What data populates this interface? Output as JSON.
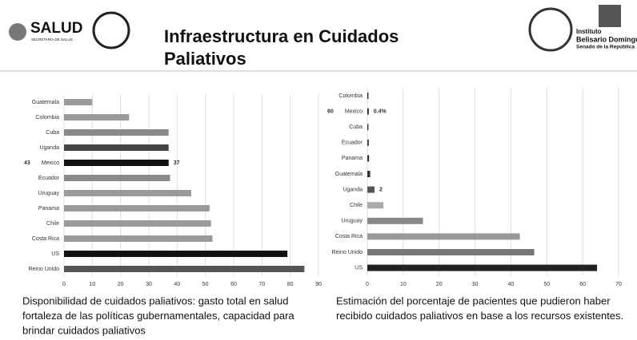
{
  "header": {
    "logo_left": "SALUD",
    "logo_left_sub": "SECRETARÍA DE SALUD",
    "title_lines": [
      "Infraestructura en Cuidados",
      "Paliativos"
    ],
    "logo_right": [
      "Instituto",
      "Belisario Domínguez",
      "Senado de la República"
    ]
  },
  "chart_data": [
    {
      "type": "barh",
      "title": [
        "Disponibilidad de cuidados paliativos: gasto total en salud",
        "fortaleza de las políticas gubernamentales, capacidad para",
        "brindar cuidados paliativos"
      ],
      "categories": [
        "Guatemala",
        "Colombia",
        "Cuba",
        "Uganda",
        "Mexico",
        "Ecuador",
        "Uruguay",
        "Panama",
        "Chile",
        "Costa Rica",
        "US",
        "Reino Unido"
      ],
      "values": [
        10,
        23,
        37,
        37,
        37,
        37.5,
        45,
        51.5,
        52,
        52.5,
        79,
        85
      ],
      "value_labels": [
        null,
        null,
        null,
        null,
        "37",
        null,
        null,
        null,
        null,
        null,
        null,
        null
      ],
      "colors": [
        "#9a9a9a",
        "#9a9a9a",
        "#8a8a8a",
        "#444444",
        "#111111",
        "#8a8a8a",
        "#9a9a9a",
        "#9a9a9a",
        "#9a9a9a",
        "#9a9a9a",
        "#111111",
        "#555555"
      ],
      "annotations": [
        {
          "text": "43",
          "at": "Mexico"
        }
      ],
      "xlim": [
        0,
        90
      ],
      "xticks": [
        0,
        10,
        20,
        30,
        40,
        50,
        60,
        70,
        80,
        90
      ],
      "grid": true
    },
    {
      "type": "barh",
      "title": [
        "Estimación del porcentaje de pacientes que pudieron haber",
        "recibido cuidados paliativos en base a los recursos existentes."
      ],
      "categories": [
        "Colombia",
        "Mexico",
        "Cuba",
        "Ecuador",
        "Panama",
        "Guatemala",
        "Uganda",
        "Chile",
        "Uruguay",
        "Costa Rica",
        "Reino Unido",
        "US"
      ],
      "values": [
        0.3,
        0.4,
        0.3,
        0.4,
        0.5,
        0.8,
        2,
        4.5,
        15.5,
        42.5,
        46.5,
        64
      ],
      "value_labels": [
        null,
        "0.4%",
        null,
        null,
        null,
        null,
        "2",
        null,
        null,
        null,
        null,
        null
      ],
      "colors": [
        "#222222",
        "#222222",
        "#333333",
        "#333333",
        "#333333",
        "#333333",
        "#555555",
        "#aaaaaa",
        "#888888",
        "#999999",
        "#777777",
        "#222222"
      ],
      "annotations": [
        {
          "text": "60",
          "at": "Mexico"
        }
      ],
      "xlim": [
        0,
        70
      ],
      "xticks": [
        0,
        10,
        20,
        30,
        40,
        50,
        60,
        70
      ],
      "grid": true
    }
  ]
}
